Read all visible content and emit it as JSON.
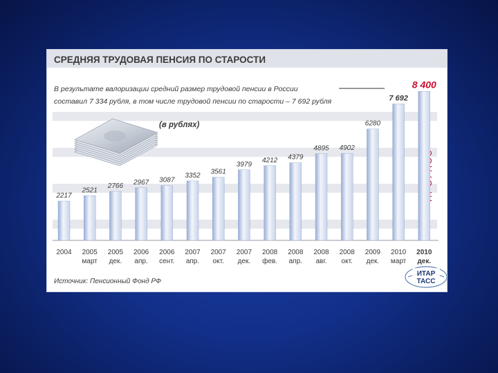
{
  "title": "СРЕДНЯЯ ТРУДОВАЯ ПЕНСИЯ ПО СТАРОСТИ",
  "note_line1": "В результате валоризации средний размер трудовой пенсии в России",
  "note_line2": "составил 7 334 рубля, в том числе трудовой пенсии по старости – 7 692 рубля",
  "forecast_label": "ПРОГНОЗ",
  "source": "Источник: Пенсионный Фонд РФ",
  "logo_text": [
    "ИТАР",
    "ТАСС"
  ],
  "colors": {
    "title_band": "#dfe2e8",
    "plot_stripe": "#e6e8ee",
    "bar_light": "#f2f5fb",
    "bar_mid": "#c9d4ea",
    "bar_dark": "#9aaed6",
    "forecast_red": "#c8102e",
    "text": "#3a3a3a"
  },
  "chart_data": {
    "type": "bar",
    "title": "СРЕДНЯЯ ТРУДОВАЯ ПЕНСИЯ ПО СТАРОСТИ",
    "ylabel": "(в рублях)",
    "xlabel": "",
    "grid": false,
    "legend": "none",
    "ylim": [
      0,
      8800
    ],
    "categories": [
      [
        "2004",
        ""
      ],
      [
        "2005",
        "март"
      ],
      [
        "2005",
        "дек."
      ],
      [
        "2006",
        "апр."
      ],
      [
        "2006",
        "сент."
      ],
      [
        "2007",
        "апр."
      ],
      [
        "2007",
        "окт."
      ],
      [
        "2007",
        "дек."
      ],
      [
        "2008",
        "фев."
      ],
      [
        "2008",
        "апр."
      ],
      [
        "2008",
        "авг."
      ],
      [
        "2008",
        "окт."
      ],
      [
        "2009",
        "дек."
      ],
      [
        "2010",
        "март"
      ],
      [
        "2010",
        "дек."
      ]
    ],
    "values": [
      2217,
      2521,
      2766,
      2967,
      3087,
      3352,
      3561,
      3979,
      4212,
      4379,
      4895,
      4902,
      6280,
      7692,
      8400
    ],
    "labels": [
      "2217",
      "2521",
      "2766",
      "2967",
      "3087",
      "3352",
      "3561",
      "3979",
      "4212",
      "4379",
      "4895",
      "4902",
      "6280",
      "7 692",
      "8 400"
    ],
    "forecast_index": 14
  }
}
